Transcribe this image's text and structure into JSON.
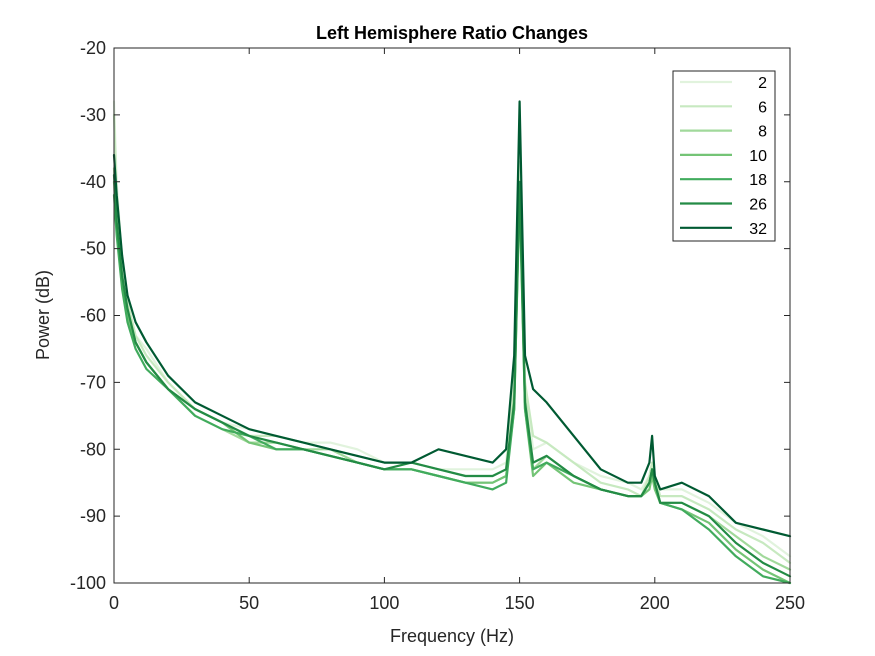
{
  "chart_data": {
    "type": "line",
    "title": "Left Hemisphere Ratio Changes",
    "xlabel": "Frequency (Hz)",
    "ylabel": "Power (dB)",
    "xlim": [
      0,
      250
    ],
    "ylim": [
      -100,
      -20
    ],
    "xticks": [
      0,
      50,
      100,
      150,
      200,
      250
    ],
    "xtick_labels": [
      "0",
      "50",
      "100",
      "150",
      "200",
      "250"
    ],
    "yticks": [
      -100,
      -90,
      -80,
      -70,
      -60,
      -50,
      -40,
      -30,
      -20
    ],
    "ytick_labels": [
      "-100",
      "-90",
      "-80",
      "-70",
      "-60",
      "-50",
      "-40",
      "-30",
      "-20"
    ],
    "grid": false,
    "legend_position": "top-right",
    "series": [
      {
        "name": "2",
        "color": "#e1f3dd",
        "x": [
          0,
          1,
          3,
          5,
          8,
          12,
          20,
          30,
          40,
          50,
          60,
          70,
          80,
          90,
          100,
          110,
          120,
          130,
          140,
          145,
          148,
          150,
          152,
          155,
          160,
          170,
          180,
          190,
          195,
          198,
          199,
          200,
          202,
          210,
          220,
          230,
          240,
          250
        ],
        "y": [
          -28,
          -40,
          -52,
          -58,
          -63,
          -65,
          -70,
          -74,
          -76,
          -77,
          -78,
          -79,
          -79,
          -80,
          -82,
          -82,
          -83,
          -83,
          -83,
          -82,
          -70,
          -38,
          -70,
          -80,
          -79,
          -82,
          -84,
          -85,
          -86,
          -84,
          -82,
          -84,
          -86,
          -86,
          -88,
          -91,
          -93,
          -96
        ]
      },
      {
        "name": "6",
        "color": "#c7e9c0",
        "x": [
          0,
          1,
          3,
          5,
          8,
          12,
          20,
          30,
          40,
          50,
          60,
          70,
          80,
          90,
          100,
          110,
          120,
          130,
          140,
          145,
          148,
          150,
          152,
          155,
          160,
          170,
          180,
          190,
          195,
          198,
          199,
          200,
          202,
          210,
          220,
          230,
          240,
          250
        ],
        "y": [
          -30,
          -42,
          -52,
          -58,
          -63,
          -66,
          -70,
          -74,
          -76,
          -78,
          -78,
          -79,
          -80,
          -81,
          -82,
          -82,
          -83,
          -84,
          -84,
          -83,
          -70,
          -37,
          -70,
          -78,
          -79,
          -82,
          -85,
          -86,
          -87,
          -84,
          -82,
          -84,
          -87,
          -87,
          -89,
          -92,
          -94,
          -97
        ]
      },
      {
        "name": "8",
        "color": "#a1d99b",
        "x": [
          0,
          1,
          3,
          5,
          8,
          12,
          20,
          30,
          40,
          50,
          60,
          70,
          80,
          90,
          100,
          110,
          120,
          130,
          140,
          145,
          148,
          150,
          152,
          155,
          160,
          170,
          180,
          190,
          195,
          198,
          199,
          200,
          202,
          210,
          220,
          230,
          240,
          250
        ],
        "y": [
          -38,
          -45,
          -54,
          -59,
          -64,
          -67,
          -71,
          -75,
          -77,
          -79,
          -79,
          -80,
          -80,
          -82,
          -83,
          -83,
          -84,
          -85,
          -85,
          -84,
          -72,
          -40,
          -72,
          -83,
          -81,
          -84,
          -86,
          -87,
          -87,
          -85,
          -83,
          -85,
          -88,
          -88,
          -90,
          -93,
          -96,
          -98
        ]
      },
      {
        "name": "10",
        "color": "#74c476",
        "x": [
          0,
          1,
          3,
          5,
          8,
          12,
          20,
          30,
          40,
          50,
          60,
          70,
          80,
          90,
          100,
          110,
          120,
          130,
          140,
          145,
          148,
          150,
          152,
          155,
          160,
          170,
          180,
          190,
          195,
          198,
          199,
          200,
          202,
          210,
          220,
          230,
          240,
          250
        ],
        "y": [
          -40,
          -47,
          -55,
          -60,
          -64,
          -67,
          -71,
          -74,
          -76,
          -79,
          -80,
          -80,
          -81,
          -82,
          -83,
          -83,
          -84,
          -85,
          -85,
          -84,
          -74,
          -42,
          -74,
          -84,
          -82,
          -85,
          -86,
          -87,
          -87,
          -86,
          -84,
          -86,
          -88,
          -89,
          -91,
          -95,
          -98,
          -100
        ]
      },
      {
        "name": "18",
        "color": "#41ab5d",
        "x": [
          0,
          1,
          3,
          5,
          8,
          12,
          20,
          30,
          40,
          50,
          60,
          70,
          80,
          90,
          100,
          110,
          120,
          130,
          140,
          145,
          148,
          150,
          152,
          155,
          160,
          170,
          180,
          190,
          195,
          198,
          199,
          200,
          202,
          210,
          220,
          230,
          240,
          250
        ],
        "y": [
          -42,
          -48,
          -56,
          -61,
          -65,
          -68,
          -71,
          -75,
          -77,
          -78,
          -80,
          -80,
          -81,
          -82,
          -83,
          -83,
          -84,
          -85,
          -86,
          -85,
          -74,
          -41,
          -74,
          -83,
          -82,
          -84,
          -86,
          -87,
          -87,
          -85,
          -83,
          -85,
          -88,
          -89,
          -92,
          -96,
          -99,
          -100
        ]
      },
      {
        "name": "26",
        "color": "#238b45",
        "x": [
          0,
          1,
          3,
          5,
          8,
          12,
          20,
          30,
          40,
          50,
          60,
          70,
          80,
          90,
          100,
          110,
          120,
          130,
          140,
          145,
          148,
          150,
          152,
          155,
          160,
          170,
          180,
          190,
          195,
          198,
          199,
          200,
          202,
          210,
          220,
          230,
          240,
          250
        ],
        "y": [
          -39,
          -46,
          -54,
          -59,
          -64,
          -67,
          -71,
          -74,
          -76,
          -78,
          -79,
          -80,
          -81,
          -82,
          -83,
          -82,
          -83,
          -84,
          -84,
          -83,
          -73,
          -40,
          -73,
          -82,
          -81,
          -84,
          -86,
          -87,
          -87,
          -85,
          -83,
          -85,
          -88,
          -88,
          -90,
          -94,
          -97,
          -99
        ]
      },
      {
        "name": "32",
        "color": "#005a32",
        "x": [
          0,
          1,
          3,
          5,
          8,
          12,
          20,
          30,
          40,
          50,
          60,
          70,
          80,
          90,
          100,
          110,
          120,
          130,
          140,
          145,
          148,
          150,
          152,
          155,
          160,
          170,
          180,
          190,
          195,
          198,
          199,
          200,
          202,
          210,
          220,
          230,
          240,
          250
        ],
        "y": [
          -36,
          -42,
          -51,
          -57,
          -61,
          -64,
          -69,
          -73,
          -75,
          -77,
          -78,
          -79,
          -80,
          -81,
          -82,
          -82,
          -80,
          -81,
          -82,
          -80,
          -66,
          -28,
          -66,
          -71,
          -73,
          -78,
          -83,
          -85,
          -85,
          -82,
          -78,
          -84,
          -86,
          -85,
          -87,
          -91,
          -92,
          -93
        ]
      }
    ]
  }
}
